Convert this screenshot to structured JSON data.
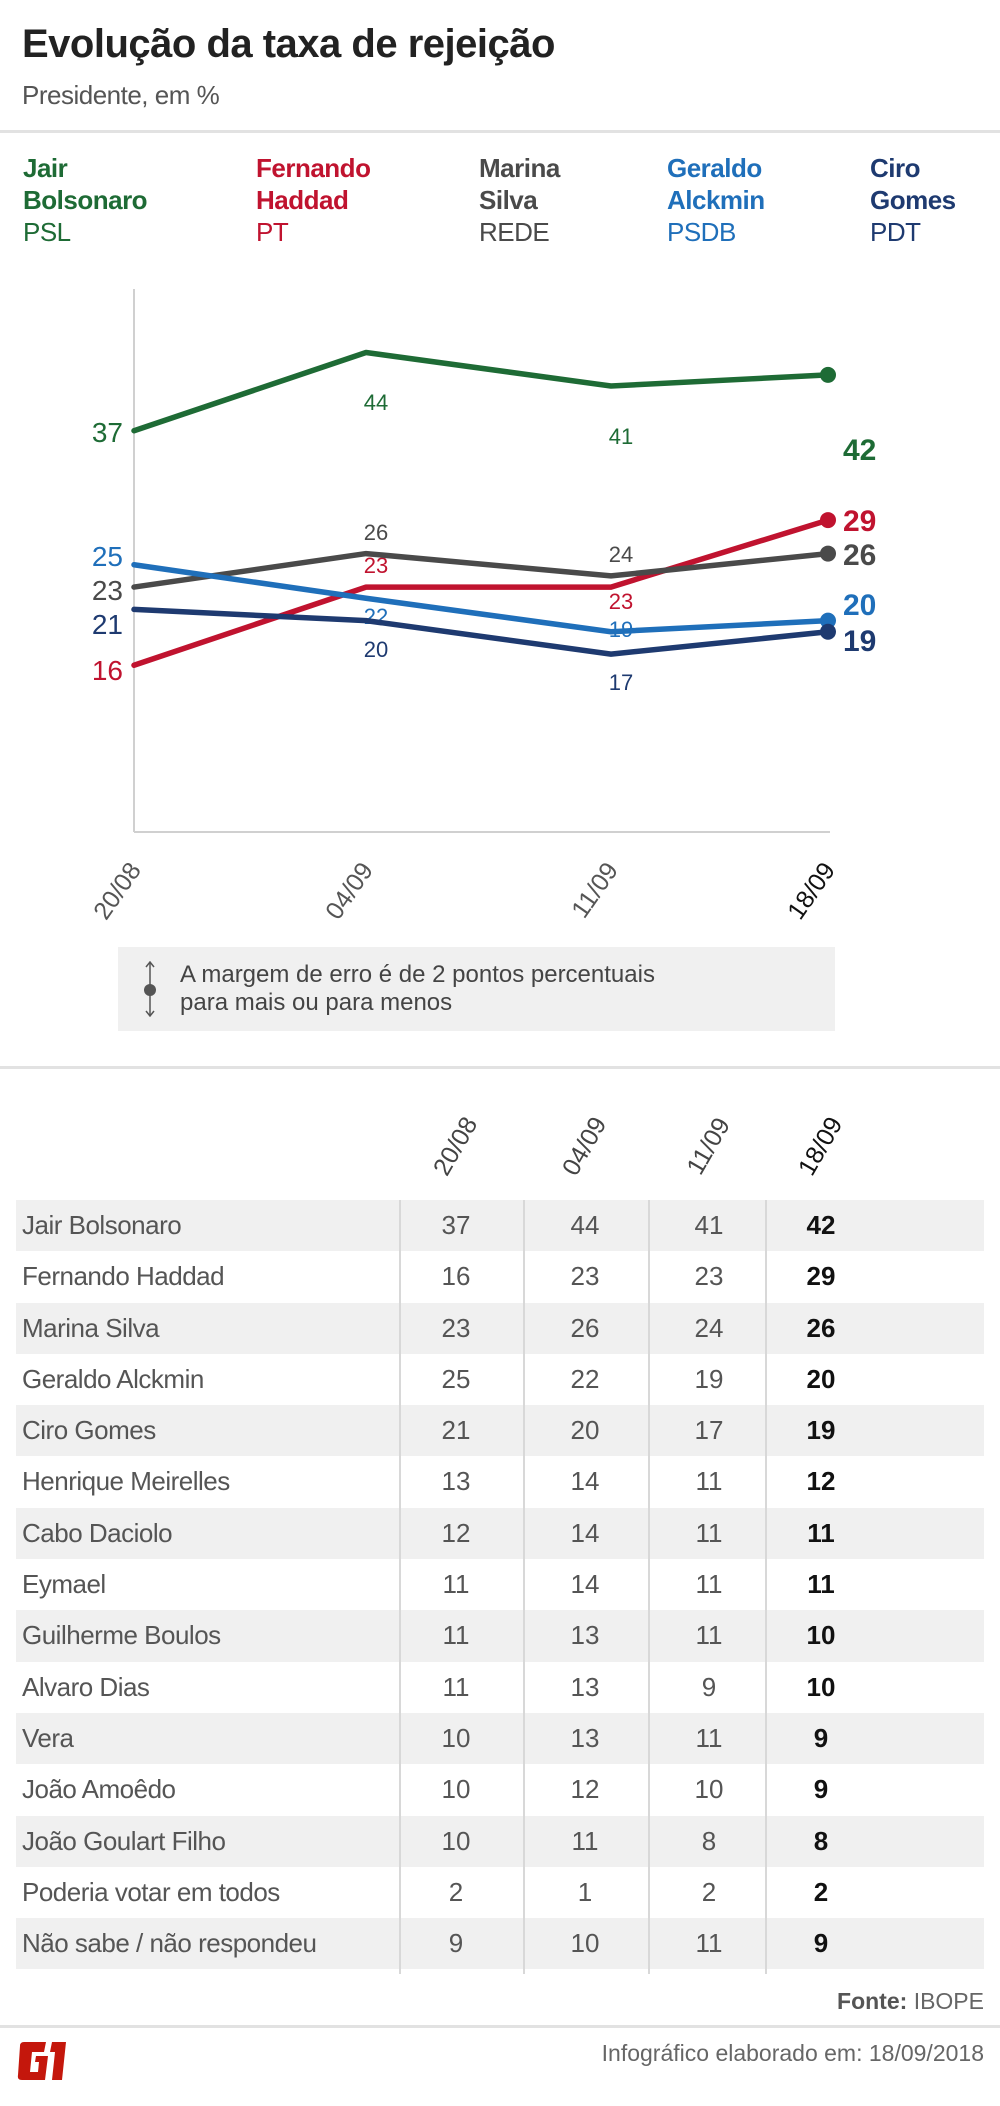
{
  "header": {
    "title": "Evolução da taxa de rejeição",
    "subtitle": "Presidente, em %"
  },
  "legend": [
    {
      "name_line1": "Jair",
      "name_line2": "Bolsonaro",
      "party": "PSL",
      "color": "#1e6b35"
    },
    {
      "name_line1": "Fernando",
      "name_line2": "Haddad",
      "party": "PT",
      "color": "#c0132f"
    },
    {
      "name_line1": "Marina",
      "name_line2": "Silva",
      "party": "REDE",
      "color": "#4a4a4a"
    },
    {
      "name_line1": "Geraldo",
      "name_line2": "Alckmin",
      "party": "PSDB",
      "color": "#1f6fba"
    },
    {
      "name_line1": "Ciro",
      "name_line2": "Gomes",
      "party": "PDT",
      "color": "#1e3a70"
    }
  ],
  "chart_data": {
    "type": "line",
    "categories": [
      "20/08",
      "04/09",
      "11/09",
      "18/09"
    ],
    "ylim": [
      0,
      48
    ],
    "grid": false,
    "series": [
      {
        "name": "Jair Bolsonaro",
        "color": "#1e6b35",
        "values": [
          37,
          44,
          41,
          42
        ]
      },
      {
        "name": "Fernando Haddad",
        "color": "#c0132f",
        "values": [
          16,
          23,
          23,
          29
        ]
      },
      {
        "name": "Marina Silva",
        "color": "#4a4a4a",
        "values": [
          23,
          26,
          24,
          26
        ]
      },
      {
        "name": "Geraldo Alckmin",
        "color": "#1f6fba",
        "values": [
          25,
          22,
          19,
          20
        ]
      },
      {
        "name": "Ciro Gomes",
        "color": "#1e3a70",
        "values": [
          21,
          20,
          17,
          19
        ]
      }
    ]
  },
  "margin_note": {
    "line1": "A margem de erro é de 2 pontos percentuais",
    "line2": "para mais ou para menos",
    "icon": "error-margin-icon"
  },
  "table": {
    "columns": [
      "20/08",
      "04/09",
      "11/09",
      "18/09"
    ],
    "rows": [
      {
        "name": "Jair Bolsonaro",
        "values": [
          "37",
          "44",
          "41",
          "42"
        ]
      },
      {
        "name": "Fernando Haddad",
        "values": [
          "16",
          "23",
          "23",
          "29"
        ]
      },
      {
        "name": "Marina Silva",
        "values": [
          "23",
          "26",
          "24",
          "26"
        ]
      },
      {
        "name": "Geraldo Alckmin",
        "values": [
          "25",
          "22",
          "19",
          "20"
        ]
      },
      {
        "name": "Ciro Gomes",
        "values": [
          "21",
          "20",
          "17",
          "19"
        ]
      },
      {
        "name": "Henrique Meirelles",
        "values": [
          "13",
          "14",
          "11",
          "12"
        ]
      },
      {
        "name": "Cabo Daciolo",
        "values": [
          "12",
          "14",
          "11",
          "11"
        ]
      },
      {
        "name": "Eymael",
        "values": [
          "11",
          "14",
          "11",
          "11"
        ]
      },
      {
        "name": "Guilherme Boulos",
        "values": [
          "11",
          "13",
          "11",
          "10"
        ]
      },
      {
        "name": "Alvaro Dias",
        "values": [
          "11",
          "13",
          "9",
          "10"
        ]
      },
      {
        "name": "Vera",
        "values": [
          "10",
          "13",
          "11",
          "9"
        ]
      },
      {
        "name": "João Amoêdo",
        "values": [
          "10",
          "12",
          "10",
          "9"
        ]
      },
      {
        "name": "João Goulart Filho",
        "values": [
          "10",
          "11",
          "8",
          "8"
        ]
      },
      {
        "name": "Poderia votar em todos",
        "values": [
          "2",
          "1",
          "2",
          "2"
        ]
      },
      {
        "name": "Não sabe / não respondeu",
        "values": [
          "9",
          "10",
          "11",
          "9"
        ]
      }
    ]
  },
  "footer": {
    "source_label": "Fonte:",
    "source": "IBOPE",
    "credit": "Infográfico elaborado em: 18/09/2018",
    "logo": "G1",
    "logo_color": "#c4170c"
  }
}
